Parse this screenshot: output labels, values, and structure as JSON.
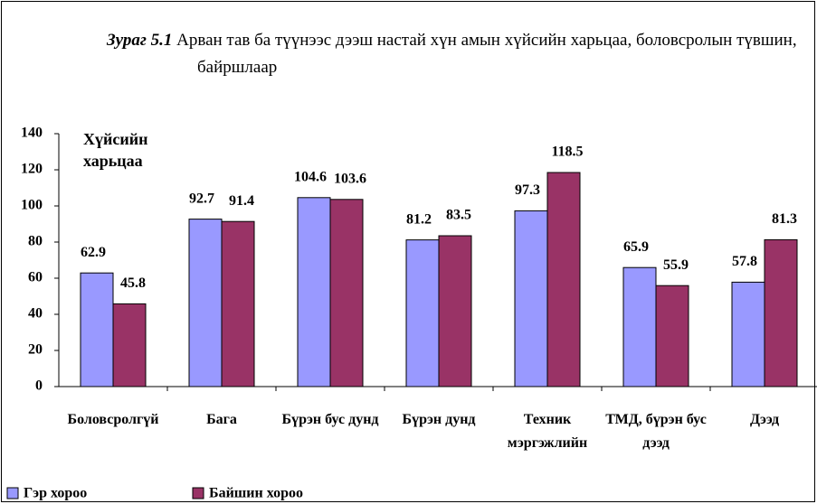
{
  "chart_data": {
    "type": "bar",
    "figure_label": "Зураг 5.1",
    "title": "Арван тав ба түүнээс дээш настай хүн амын хүйсийн харьцаа, боловсролын түвшин, байршлаар",
    "ylabel": "Хүйсийн харьцаа",
    "categories": [
      "Боловсролгүй",
      "Бага",
      "Бүрэн бус дунд",
      "Бүрэн дунд",
      "Техник мэргэжлийн",
      "ТМД, бүрэн бус дээд",
      "Дээд"
    ],
    "series": [
      {
        "name": "Гэр хороо",
        "color": "#9999ff",
        "values": [
          62.9,
          92.7,
          104.6,
          81.2,
          97.3,
          65.9,
          57.8
        ]
      },
      {
        "name": "Байшин хороо",
        "color": "#993366",
        "values": [
          45.8,
          91.4,
          103.6,
          83.5,
          118.5,
          55.9,
          81.3
        ]
      }
    ],
    "ylim": [
      0,
      140
    ],
    "yticks": [
      0,
      20,
      40,
      60,
      80,
      100,
      120,
      140
    ],
    "grid": false,
    "legend": "bottom-left"
  }
}
